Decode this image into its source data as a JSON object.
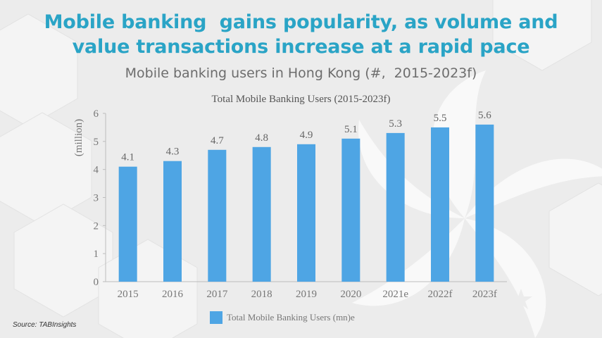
{
  "headline": {
    "line1": "Mobile banking  gains popularity, as volume and",
    "line2": "value transactions increase at a rapid pace"
  },
  "subtitle": "Mobile banking users in Hong Kong (#,  2015-2023f)",
  "source": "Source: TABInsights",
  "colors": {
    "headline": "#2aa4c6",
    "bar": "#4ea5e4",
    "background": "#ececec"
  },
  "chart_data": {
    "type": "bar",
    "title": "Total Mobile Banking Users (2015-2023f)",
    "xlabel": "",
    "ylabel": "(million)",
    "categories": [
      "2015",
      "2016",
      "2017",
      "2018",
      "2019",
      "2020",
      "2021e",
      "2022f",
      "2023f"
    ],
    "series": [
      {
        "name": "Total Mobile Banking Users (mn)e",
        "values": [
          4.1,
          4.3,
          4.7,
          4.8,
          4.9,
          5.1,
          5.3,
          5.5,
          5.6
        ]
      }
    ],
    "data_labels": [
      "4.1",
      "4.3",
      "4.7",
      "4.8",
      "4.9",
      "5.1",
      "5.3",
      "5.5",
      "5.6"
    ],
    "yticks": [
      0,
      1,
      2,
      3,
      4,
      5,
      6
    ],
    "ylim": [
      0,
      6
    ],
    "grid": false,
    "legend": "bottom"
  }
}
